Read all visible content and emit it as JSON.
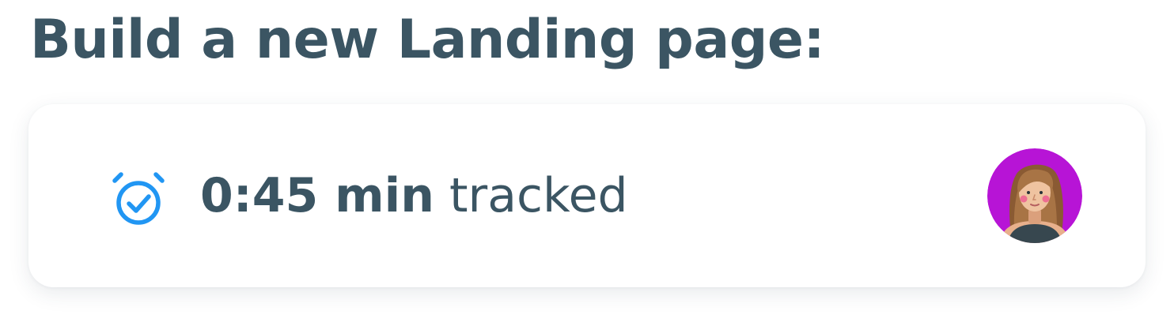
{
  "header": {
    "title": "Build a new Landing page:"
  },
  "tracker": {
    "duration": "0:45 min",
    "label": "tracked",
    "icon": "alarm-clock-check-icon",
    "icon_color": "#2196f3",
    "text_color": "#3b5563"
  },
  "avatar": {
    "icon": "user-avatar-woman",
    "background_color": "#b714d6"
  }
}
